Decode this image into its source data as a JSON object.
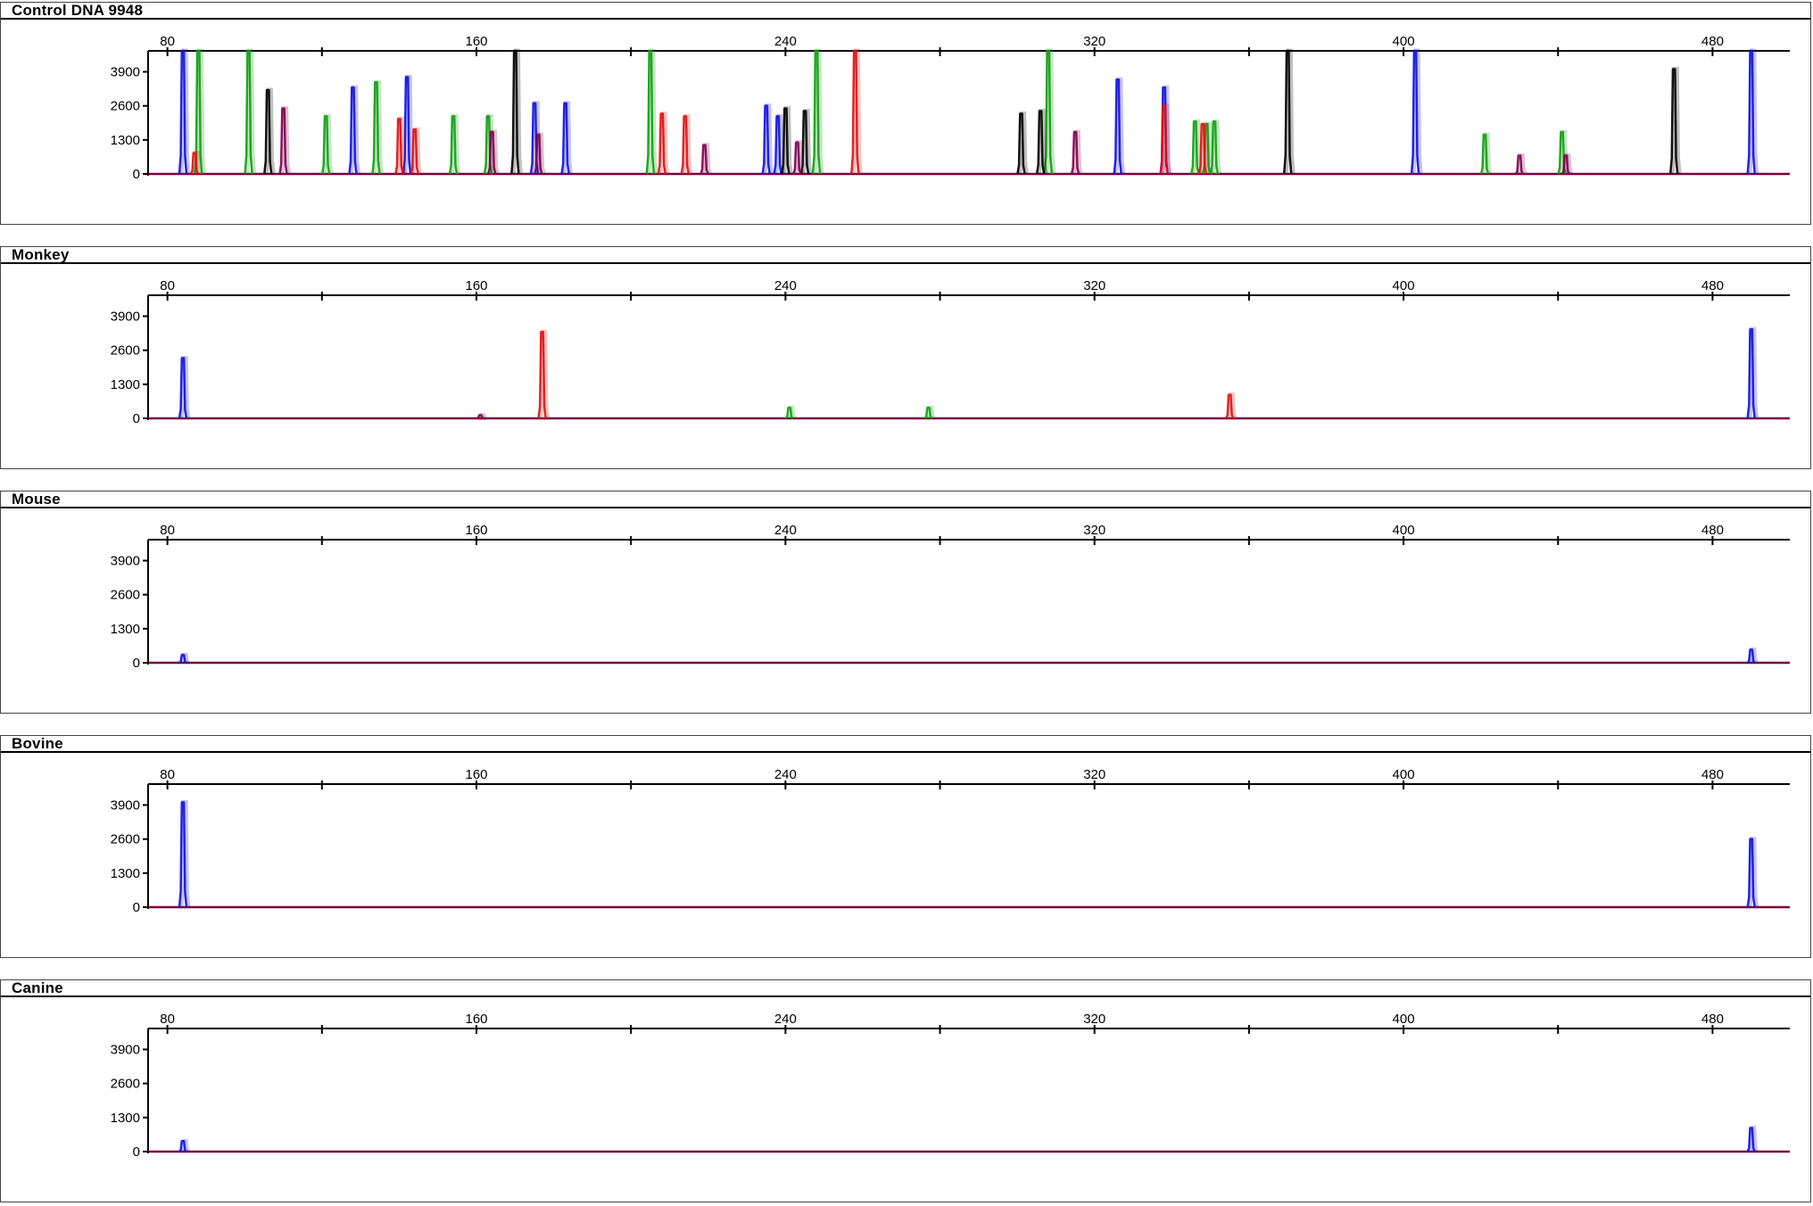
{
  "figure": {
    "panels": [
      {
        "title": "Control DNA 9948"
      },
      {
        "title": "Monkey"
      },
      {
        "title": "Mouse"
      },
      {
        "title": "Bovine"
      },
      {
        "title": "Canine"
      }
    ]
  },
  "colors": {
    "blue": "#1010e0",
    "green": "#10a010",
    "black": "#000000",
    "red": "#e01010",
    "purple": "#800050",
    "baseline": "#7a0040"
  },
  "chart_data": [
    {
      "type": "line",
      "title": "Control DNA 9948",
      "x_ticks": [
        80,
        160,
        240,
        320,
        400,
        480
      ],
      "y_ticks": [
        0,
        1300,
        2600,
        3900
      ],
      "xlim": [
        75,
        500
      ],
      "ylim": [
        0,
        4700
      ],
      "series": [
        {
          "color": "blue",
          "peaks": [
            [
              84,
              4700
            ],
            [
              128,
              3300
            ],
            [
              142,
              3700
            ],
            [
              175,
              2700
            ],
            [
              183,
              2700
            ],
            [
              235,
              2600
            ],
            [
              238,
              2200
            ],
            [
              326,
              3600
            ],
            [
              338,
              3300
            ],
            [
              403,
              4700
            ],
            [
              490,
              4700
            ]
          ]
        },
        {
          "color": "green",
          "peaks": [
            [
              88,
              4700
            ],
            [
              101,
              4700
            ],
            [
              121,
              2200
            ],
            [
              134,
              3500
            ],
            [
              154,
              2200
            ],
            [
              163,
              2200
            ],
            [
              205,
              4700
            ],
            [
              248,
              4700
            ],
            [
              308,
              4700
            ],
            [
              346,
              2000
            ],
            [
              349,
              1900
            ],
            [
              351,
              2000
            ],
            [
              421,
              1500
            ],
            [
              441,
              1600
            ]
          ]
        },
        {
          "color": "black",
          "peaks": [
            [
              106,
              3200
            ],
            [
              170,
              4700
            ],
            [
              240,
              2500
            ],
            [
              245,
              2400
            ],
            [
              301,
              2300
            ],
            [
              306,
              2400
            ],
            [
              370,
              4700
            ],
            [
              470,
              4000
            ]
          ]
        },
        {
          "color": "red",
          "peaks": [
            [
              87,
              800
            ],
            [
              140,
              2100
            ],
            [
              144,
              1700
            ],
            [
              208,
              2300
            ],
            [
              214,
              2200
            ],
            [
              258,
              4700
            ],
            [
              338,
              2600
            ],
            [
              348,
              1900
            ]
          ]
        },
        {
          "color": "purple",
          "peaks": [
            [
              110,
              2500
            ],
            [
              164,
              1600
            ],
            [
              176,
              1500
            ],
            [
              219,
              1100
            ],
            [
              243,
              1200
            ],
            [
              315,
              1600
            ],
            [
              430,
              700
            ],
            [
              442,
              700
            ]
          ]
        }
      ]
    },
    {
      "type": "line",
      "title": "Monkey",
      "x_ticks": [
        80,
        160,
        240,
        320,
        400,
        480
      ],
      "y_ticks": [
        0,
        1300,
        2600,
        3900
      ],
      "xlim": [
        75,
        500
      ],
      "ylim": [
        0,
        4700
      ],
      "series": [
        {
          "color": "blue",
          "peaks": [
            [
              84,
              2300
            ],
            [
              490,
              3400
            ]
          ]
        },
        {
          "color": "red",
          "peaks": [
            [
              177,
              3300
            ],
            [
              355,
              900
            ]
          ]
        },
        {
          "color": "green",
          "peaks": [
            [
              241,
              400
            ],
            [
              277,
              400
            ]
          ]
        },
        {
          "color": "purple",
          "peaks": [
            [
              161,
              120
            ]
          ]
        }
      ]
    },
    {
      "type": "line",
      "title": "Mouse",
      "x_ticks": [
        80,
        160,
        240,
        320,
        400,
        480
      ],
      "y_ticks": [
        0,
        1300,
        2600,
        3900
      ],
      "xlim": [
        75,
        500
      ],
      "ylim": [
        0,
        4700
      ],
      "series": [
        {
          "color": "blue",
          "peaks": [
            [
              84,
              300
            ],
            [
              490,
              500
            ]
          ]
        }
      ]
    },
    {
      "type": "line",
      "title": "Bovine",
      "x_ticks": [
        80,
        160,
        240,
        320,
        400,
        480
      ],
      "y_ticks": [
        0,
        1300,
        2600,
        3900
      ],
      "xlim": [
        75,
        500
      ],
      "ylim": [
        0,
        4700
      ],
      "series": [
        {
          "color": "blue",
          "peaks": [
            [
              84,
              4000
            ],
            [
              490,
              2600
            ]
          ]
        }
      ]
    },
    {
      "type": "line",
      "title": "Canine",
      "x_ticks": [
        80,
        160,
        240,
        320,
        400,
        480
      ],
      "y_ticks": [
        0,
        1300,
        2600,
        3900
      ],
      "xlim": [
        75,
        500
      ],
      "ylim": [
        0,
        4700
      ],
      "series": [
        {
          "color": "blue",
          "peaks": [
            [
              84,
              400
            ],
            [
              490,
              900
            ]
          ]
        }
      ]
    }
  ]
}
